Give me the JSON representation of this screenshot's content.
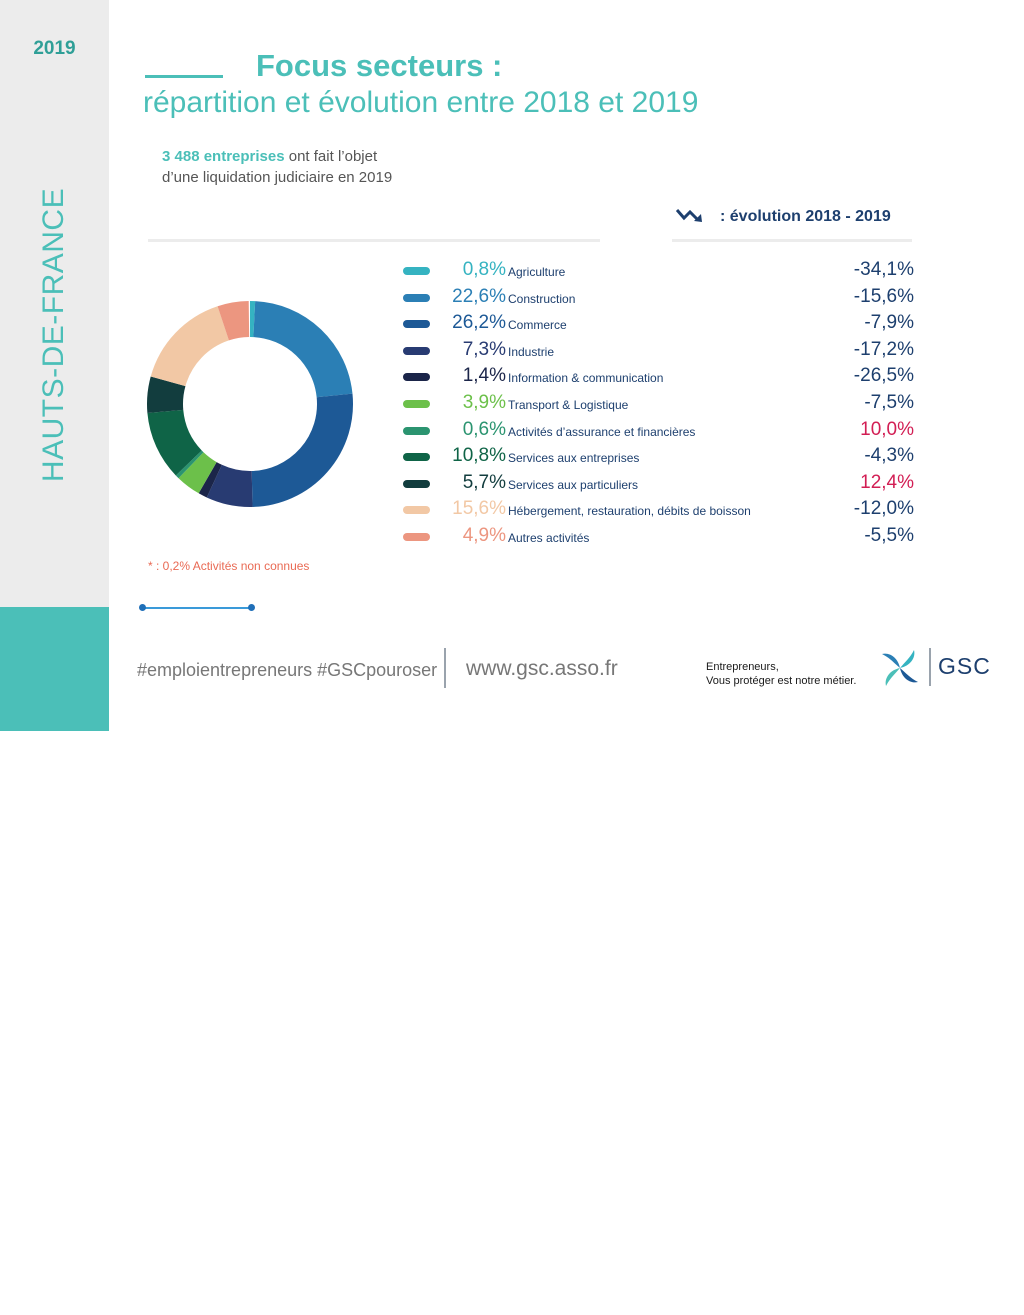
{
  "header": {
    "year": "2019",
    "region": "HAUTS-DE-FRANCE",
    "title": "Focus secteurs :",
    "subtitle": "répartition et évolution entre 2018 et 2019"
  },
  "intro": {
    "highlight": "3 488 entreprises",
    "line1_rest": " ont fait l’objet",
    "line2": "d’une liquidation judiciaire en 2019"
  },
  "evolution_header": ": évolution 2018 - 2019",
  "footnote": "* : 0,2% Activités non connues",
  "chart_data": {
    "type": "pie",
    "title": "Focus secteurs : répartition et évolution entre 2018 et 2019",
    "categories": [
      "Agriculture",
      "Construction",
      "Commerce",
      "Industrie",
      "Information & communication",
      "Transport & Logistique",
      "Activités d’assurance et financières",
      "Services aux entreprises",
      "Services aux particuliers",
      "Hébergement, restauration, débits de boisson",
      "Autres activités"
    ],
    "values": [
      0.8,
      22.6,
      26.2,
      7.3,
      1.4,
      3.9,
      0.6,
      10.8,
      5.7,
      15.6,
      4.9
    ],
    "labels": [
      "0,8%",
      "22,6%",
      "26,2%",
      "7,3%",
      "1,4%",
      "3,9%",
      "0,6%",
      "10,8%",
      "5,7%",
      "15,6%",
      "4,9%"
    ],
    "evolution": [
      "-34,1%",
      "-15,6%",
      "-7,9%",
      "-17,2%",
      "-26,5%",
      "-7,5%",
      "10,0%",
      "-4,3%",
      "12,4%",
      "-12,0%",
      "-5,5%"
    ],
    "colors": [
      "#35b3c1",
      "#2b7fb5",
      "#1d5996",
      "#283b72",
      "#1b2549",
      "#6cc04a",
      "#2b9470",
      "#0f6447",
      "#123d3e",
      "#f2c8a5",
      "#ec9680"
    ],
    "pct_colors": [
      "#35b3c1",
      "#2b7fb5",
      "#1d5996",
      "#283b72",
      "#1b2549",
      "#6cc04a",
      "#2b9470",
      "#0f6447",
      "#123d3e",
      "#f2c8a5",
      "#ec9680"
    ],
    "donut_order": [
      0,
      1,
      2,
      3,
      4,
      5,
      6,
      7,
      8,
      9,
      10
    ]
  },
  "footer": {
    "hashtags": "#emploientrepreneurs #GSCpouroser",
    "website": "www.gsc.asso.fr",
    "tagline_line1": "Entrepreneurs,",
    "tagline_line2": "Vous protéger est notre métier.",
    "brand": "GSC"
  }
}
